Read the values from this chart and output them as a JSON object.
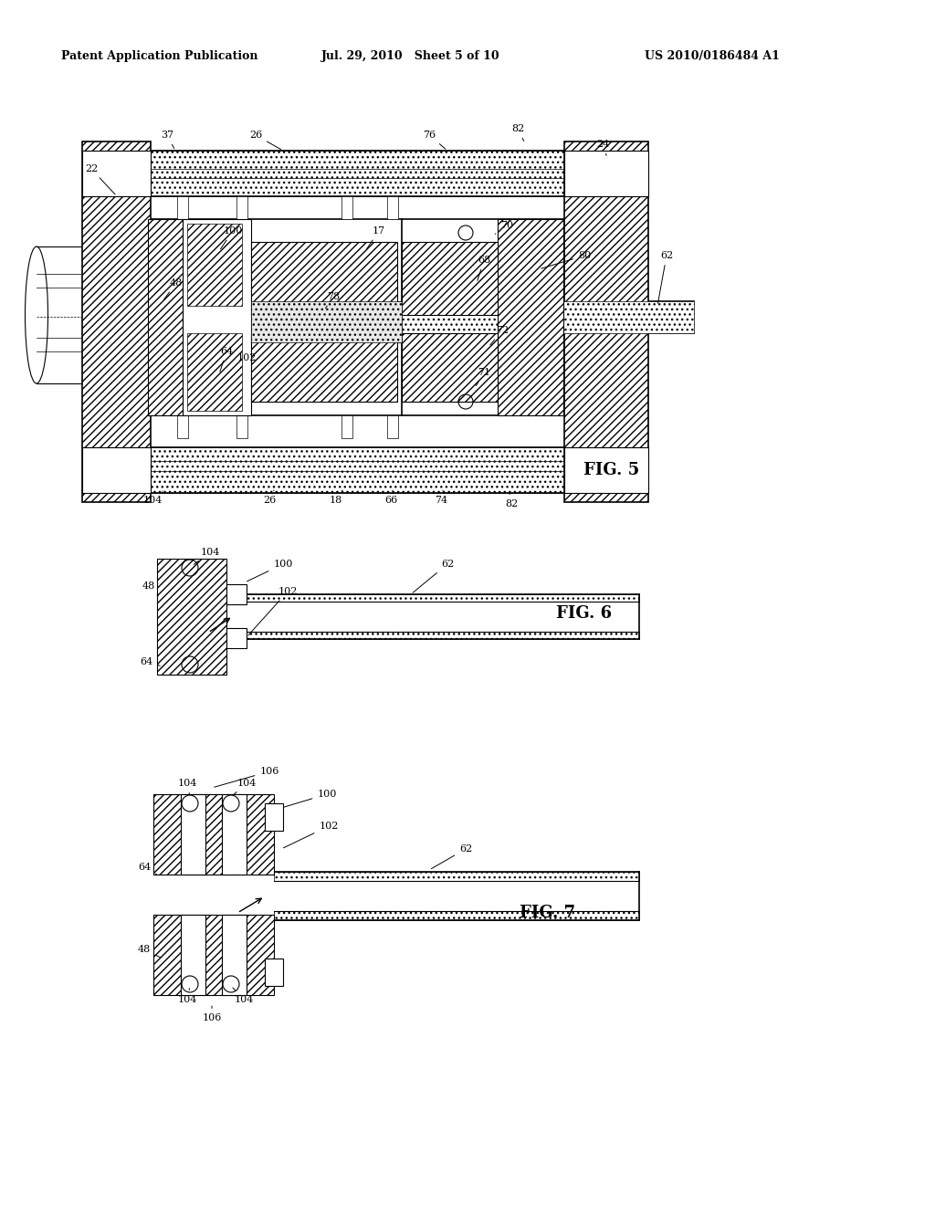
{
  "bg_color": "#ffffff",
  "header_left": "Patent Application Publication",
  "header_mid": "Jul. 29, 2010   Sheet 5 of 10",
  "header_right": "US 2010/0186484 A1",
  "fig5_label": "FIG. 5",
  "fig6_label": "FIG. 6",
  "fig7_label": "FIG. 7",
  "line_color": "#000000",
  "hatch_color": "#000000"
}
